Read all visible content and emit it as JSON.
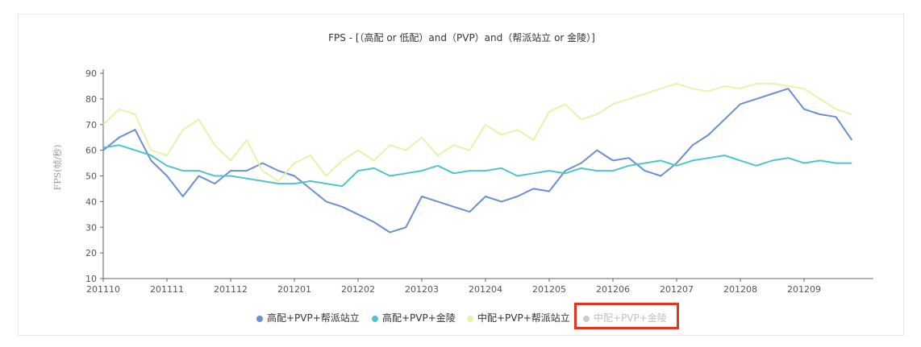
{
  "chart_data": {
    "type": "line",
    "title": "FPS - [（高配 or 低配）and（PVP）and（帮派站立 or 金陵）]",
    "ylabel": "FPS(帧/秒)",
    "xlabel": "",
    "ylim": [
      10,
      90
    ],
    "y_ticks": [
      10,
      20,
      30,
      40,
      50,
      60,
      70,
      80,
      90
    ],
    "x_ticks": [
      "201110",
      "201111",
      "201112",
      "201201",
      "201202",
      "201203",
      "201204",
      "201205",
      "201206",
      "201207",
      "201208",
      "201209"
    ],
    "legend_position": "bottom",
    "grid": false,
    "series": [
      {
        "name": "高配+PVP+帮派站立",
        "color": "#6b8fd5",
        "visible": true,
        "x": [
          0,
          0.25,
          0.5,
          0.75,
          1,
          1.25,
          1.5,
          1.75,
          2,
          2.25,
          2.5,
          2.75,
          3,
          3.25,
          3.5,
          3.75,
          4,
          4.25,
          4.5,
          4.75,
          5,
          5.25,
          5.5,
          5.75,
          6,
          6.25,
          6.5,
          6.75,
          7,
          7.25,
          7.5,
          7.75,
          8,
          8.25,
          8.5,
          8.75,
          9,
          9.25,
          9.5,
          9.75,
          10,
          10.25,
          10.5,
          10.75,
          11,
          11.25,
          11.5,
          11.75
        ],
        "values": [
          60,
          65,
          68,
          56,
          50,
          42,
          50,
          47,
          52,
          52,
          55,
          52,
          50,
          45,
          40,
          38,
          35,
          32,
          28,
          30,
          42,
          40,
          38,
          36,
          42,
          40,
          42,
          45,
          44,
          52,
          55,
          60,
          56,
          57,
          52,
          50,
          55,
          62,
          66,
          72,
          78,
          80,
          82,
          84,
          76,
          74,
          73,
          64
        ]
      },
      {
        "name": "高配+PVP+金陵",
        "color": "#4fc3cf",
        "visible": true,
        "x": [
          0,
          0.25,
          0.5,
          0.75,
          1,
          1.25,
          1.5,
          1.75,
          2,
          2.25,
          2.5,
          2.75,
          3,
          3.25,
          3.5,
          3.75,
          4,
          4.25,
          4.5,
          4.75,
          5,
          5.25,
          5.5,
          5.75,
          6,
          6.25,
          6.5,
          6.75,
          7,
          7.25,
          7.5,
          7.75,
          8,
          8.25,
          8.5,
          8.75,
          9,
          9.25,
          9.5,
          9.75,
          10,
          10.25,
          10.5,
          10.75,
          11,
          11.25,
          11.5,
          11.75
        ],
        "values": [
          61,
          62,
          60,
          58,
          54,
          52,
          52,
          50,
          50,
          49,
          48,
          47,
          47,
          48,
          47,
          46,
          52,
          53,
          50,
          51,
          52,
          54,
          51,
          52,
          52,
          53,
          50,
          51,
          52,
          51,
          53,
          52,
          52,
          54,
          55,
          56,
          54,
          56,
          57,
          58,
          56,
          54,
          56,
          57,
          55,
          56,
          55,
          55
        ]
      },
      {
        "name": "中配+PVP+帮派站立",
        "color": "#e6f3a9",
        "visible": true,
        "x": [
          0,
          0.25,
          0.5,
          0.75,
          1,
          1.25,
          1.5,
          1.75,
          2,
          2.25,
          2.5,
          2.75,
          3,
          3.25,
          3.5,
          3.75,
          4,
          4.25,
          4.5,
          4.75,
          5,
          5.25,
          5.5,
          5.75,
          6,
          6.25,
          6.5,
          6.75,
          7,
          7.25,
          7.5,
          7.75,
          8,
          8.25,
          8.5,
          8.75,
          9,
          9.25,
          9.5,
          9.75,
          10,
          10.25,
          10.5,
          10.75,
          11,
          11.25,
          11.5,
          11.75
        ],
        "values": [
          70,
          76,
          74,
          60,
          58,
          68,
          72,
          62,
          56,
          64,
          52,
          48,
          55,
          58,
          50,
          56,
          60,
          56,
          62,
          60,
          65,
          58,
          62,
          60,
          70,
          66,
          68,
          64,
          75,
          78,
          72,
          74,
          78,
          80,
          82,
          84,
          86,
          84,
          83,
          85,
          84,
          86,
          86,
          85,
          84,
          80,
          76,
          74
        ]
      },
      {
        "name": "中配+PVP+金陵",
        "color": "#cccccc",
        "visible": false,
        "x": [],
        "values": []
      }
    ]
  }
}
